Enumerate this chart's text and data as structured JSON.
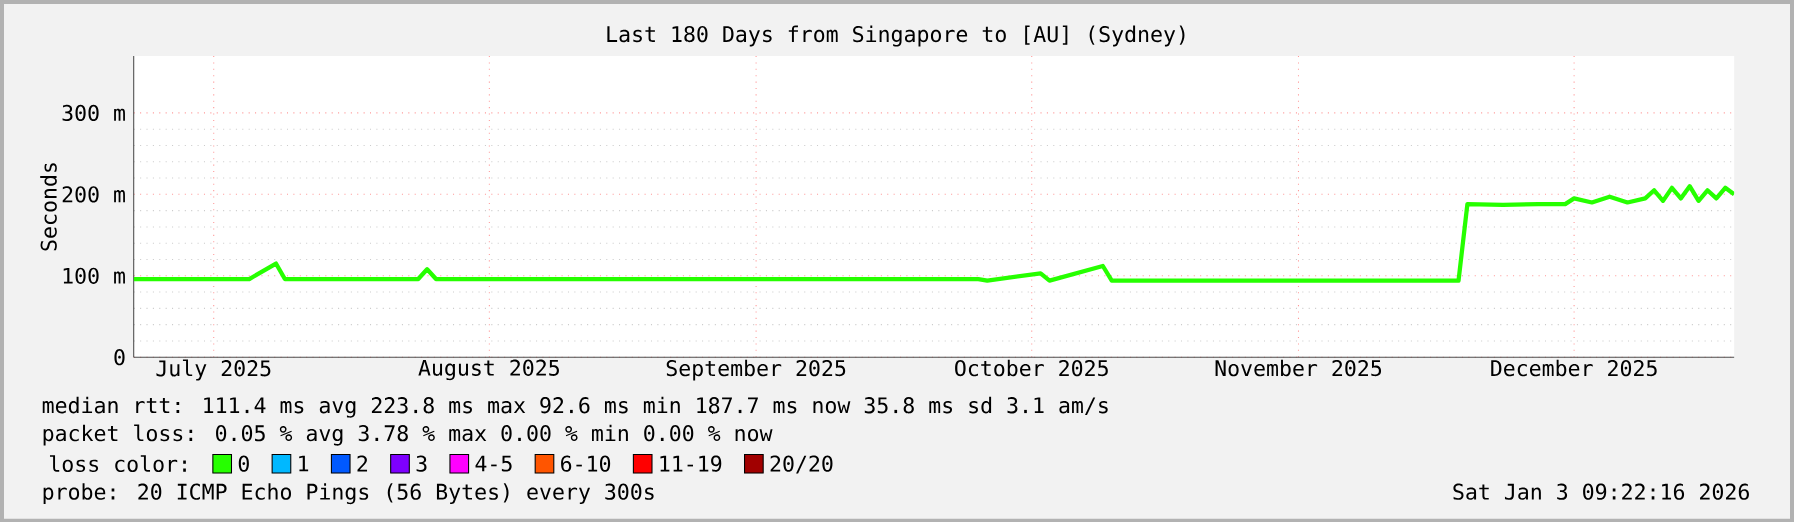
{
  "chart_data": {
    "type": "line",
    "title": "Last 180 Days from Singapore to [AU] (Sydney)",
    "ylabel": "Seconds",
    "xlim": [
      "2025-07-07",
      "2026-01-03"
    ],
    "xticks": [
      {
        "value": "2025-07-16",
        "label": "July 2025"
      },
      {
        "value": "2025-08-16",
        "label": "August 2025"
      },
      {
        "value": "2025-09-15",
        "label": "September 2025"
      },
      {
        "value": "2025-10-16",
        "label": "October 2025"
      },
      {
        "value": "2025-11-15",
        "label": "November 2025"
      },
      {
        "value": "2025-12-16",
        "label": "December 2025"
      }
    ],
    "ylim": [
      0,
      370
    ],
    "yticks": [
      0,
      {
        "value": 100,
        "label": "100 m"
      },
      {
        "value": 200,
        "label": "200 m"
      },
      {
        "value": 300,
        "label": "300 m"
      }
    ],
    "grid": true,
    "legend": "bottom",
    "legend_title": "loss color:",
    "marker": "none",
    "line_style": "solid",
    "x": [
      "2025-07-07",
      "2025-07-20",
      "2025-07-23",
      "2025-07-24",
      "2025-08-08",
      "2025-08-09",
      "2025-08-10",
      "2025-09-10",
      "2025-10-01",
      "2025-10-10",
      "2025-10-11",
      "2025-10-17",
      "2025-10-18",
      "2025-10-24",
      "2025-10-25",
      "2025-11-10",
      "2025-12-03",
      "2025-12-04",
      "2025-12-08",
      "2025-12-12",
      "2025-12-15",
      "2025-12-16",
      "2025-12-18",
      "2025-12-20",
      "2025-12-22",
      "2025-12-24",
      "2025-12-25",
      "2025-12-26",
      "2025-12-27",
      "2025-12-28",
      "2025-12-29",
      "2025-12-30",
      "2025-12-31",
      "2026-01-01",
      "2026-01-02",
      "2026-01-03"
    ],
    "series": [
      {
        "name": "0",
        "color": "#26ff00",
        "values": [
          96,
          96,
          115,
          96,
          96,
          108,
          96,
          96,
          96,
          96,
          94,
          103,
          94,
          112,
          94,
          94,
          94,
          188,
          187,
          188,
          188,
          195,
          190,
          197,
          190,
          195,
          205,
          192,
          208,
          195,
          210,
          192,
          205,
          195,
          208,
          200
        ]
      },
      {
        "name": "1",
        "color": "#00b8ff",
        "values": [
          null,
          null,
          null,
          null,
          null,
          null,
          null,
          null,
          null,
          null,
          null,
          null,
          null,
          null,
          null,
          null,
          null,
          null,
          null,
          null,
          null,
          null,
          null,
          null,
          null,
          null,
          null,
          null,
          null,
          null,
          null,
          null,
          null,
          null,
          null,
          null
        ]
      },
      {
        "name": "2",
        "color": "#0059ff",
        "values": [
          null,
          null,
          null,
          null,
          null,
          null,
          null,
          null,
          null,
          null,
          null,
          null,
          null,
          null,
          null,
          null,
          null,
          null,
          null,
          null,
          null,
          null,
          null,
          null,
          null,
          null,
          null,
          null,
          null,
          null,
          null,
          null,
          null,
          null,
          null,
          null
        ]
      },
      {
        "name": "3",
        "color": "#7e00ff",
        "values": [
          null,
          null,
          null,
          null,
          null,
          null,
          null,
          null,
          null,
          null,
          null,
          null,
          null,
          null,
          null,
          null,
          null,
          null,
          null,
          null,
          null,
          null,
          null,
          null,
          null,
          null,
          null,
          null,
          null,
          null,
          null,
          null,
          null,
          null,
          null,
          null
        ]
      },
      {
        "name": "4-5",
        "color": "#ff00ff",
        "values": [
          null,
          null,
          null,
          null,
          null,
          null,
          null,
          null,
          null,
          null,
          null,
          null,
          null,
          null,
          null,
          null,
          null,
          null,
          null,
          null,
          null,
          null,
          null,
          null,
          null,
          null,
          null,
          null,
          null,
          null,
          null,
          null,
          null,
          null,
          null,
          null
        ]
      },
      {
        "name": "6-10",
        "color": "#ff5500",
        "values": [
          null,
          null,
          null,
          null,
          null,
          null,
          null,
          null,
          null,
          null,
          null,
          null,
          null,
          null,
          null,
          null,
          null,
          null,
          null,
          null,
          null,
          null,
          null,
          null,
          null,
          null,
          null,
          null,
          null,
          null,
          null,
          null,
          null,
          null,
          null,
          null
        ]
      },
      {
        "name": "11-19",
        "color": "#ff0000",
        "values": [
          null,
          null,
          null,
          null,
          null,
          null,
          null,
          null,
          null,
          null,
          null,
          null,
          null,
          null,
          null,
          null,
          null,
          null,
          null,
          null,
          null,
          null,
          null,
          null,
          null,
          null,
          null,
          null,
          null,
          null,
          null,
          null,
          null,
          null,
          null,
          null
        ]
      },
      {
        "name": "20/20",
        "color": "#a10000",
        "values": [
          null,
          null,
          null,
          null,
          null,
          null,
          null,
          null,
          null,
          null,
          null,
          null,
          null,
          null,
          null,
          null,
          null,
          null,
          null,
          null,
          null,
          null,
          null,
          null,
          null,
          null,
          null,
          null,
          null,
          null,
          null,
          null,
          null,
          null,
          null,
          null
        ]
      }
    ],
    "annotations": [
      "median rtt:  111.4 ms avg  223.8 ms max  92.6 ms min  187.7 ms now  35.8 ms sd  3.1   am/s",
      "packet loss: 0.05 % avg  3.78 % max  0.00 % min  0.00 % now",
      "probe:       20 ICMP Echo Pings (56 Bytes) every 300s",
      "Sat Jan  3 09:22:16 2026"
    ]
  }
}
